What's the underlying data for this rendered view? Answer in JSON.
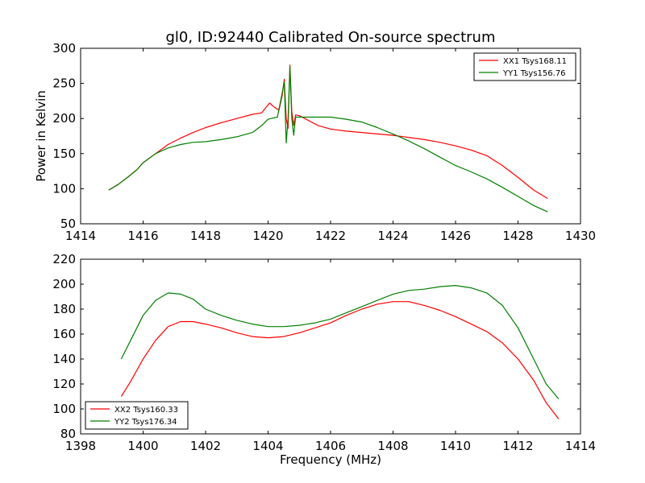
{
  "chart_data": [
    {
      "type": "line",
      "title": "gl0, ID:92440 Calibrated On-source spectrum",
      "xlabel": "",
      "ylabel": "Power in Kelvin",
      "xlim": [
        1414,
        1430
      ],
      "ylim": [
        50,
        300
      ],
      "xticks": [
        1414,
        1416,
        1418,
        1420,
        1422,
        1424,
        1426,
        1428,
        1430
      ],
      "yticks": [
        50,
        100,
        150,
        200,
        250,
        300
      ],
      "legend_position": "top-right",
      "grid": false,
      "series": [
        {
          "name": "XX1 Tsys168.11",
          "color": "#ff0000",
          "points": [
            [
              1414.9,
              98
            ],
            [
              1415.2,
              106
            ],
            [
              1415.5,
              116
            ],
            [
              1415.8,
              127
            ],
            [
              1416.0,
              137
            ],
            [
              1416.4,
              150
            ],
            [
              1416.8,
              163
            ],
            [
              1417.2,
              172
            ],
            [
              1417.6,
              180
            ],
            [
              1418.0,
              187
            ],
            [
              1418.5,
              194
            ],
            [
              1419.0,
              200
            ],
            [
              1419.5,
              206
            ],
            [
              1419.8,
              208
            ],
            [
              1419.9,
              214
            ],
            [
              1420.05,
              222
            ],
            [
              1420.2,
              216
            ],
            [
              1420.35,
              212
            ],
            [
              1420.45,
              232
            ],
            [
              1420.52,
              256
            ],
            [
              1420.58,
              200
            ],
            [
              1420.64,
              186
            ],
            [
              1420.7,
              276
            ],
            [
              1420.76,
              210
            ],
            [
              1420.82,
              190
            ],
            [
              1420.88,
              205
            ],
            [
              1421.0,
              204
            ],
            [
              1421.3,
              197
            ],
            [
              1421.6,
              190
            ],
            [
              1422.0,
              185
            ],
            [
              1422.5,
              182
            ],
            [
              1423.0,
              180
            ],
            [
              1423.5,
              178
            ],
            [
              1424.0,
              176
            ],
            [
              1424.5,
              173
            ],
            [
              1425.0,
              170
            ],
            [
              1425.5,
              166
            ],
            [
              1426.0,
              161
            ],
            [
              1426.5,
              155
            ],
            [
              1427.0,
              147
            ],
            [
              1427.5,
              133
            ],
            [
              1428.0,
              116
            ],
            [
              1428.5,
              98
            ],
            [
              1428.95,
              86
            ]
          ]
        },
        {
          "name": "YY1 Tsys156.76",
          "color": "#008000",
          "points": [
            [
              1414.9,
              98
            ],
            [
              1415.2,
              106
            ],
            [
              1415.5,
              116
            ],
            [
              1415.8,
              127
            ],
            [
              1416.0,
              137
            ],
            [
              1416.4,
              150
            ],
            [
              1416.8,
              158
            ],
            [
              1417.2,
              163
            ],
            [
              1417.6,
              166
            ],
            [
              1418.0,
              167
            ],
            [
              1418.5,
              170
            ],
            [
              1419.0,
              174
            ],
            [
              1419.5,
              180
            ],
            [
              1419.8,
              190
            ],
            [
              1420.0,
              199
            ],
            [
              1420.3,
              202
            ],
            [
              1420.45,
              236
            ],
            [
              1420.52,
              252
            ],
            [
              1420.58,
              165
            ],
            [
              1420.64,
              200
            ],
            [
              1420.7,
              274
            ],
            [
              1420.76,
              200
            ],
            [
              1420.82,
              176
            ],
            [
              1420.88,
              202
            ],
            [
              1421.0,
              202
            ],
            [
              1421.5,
              202
            ],
            [
              1422.0,
              202
            ],
            [
              1422.5,
              199
            ],
            [
              1423.0,
              195
            ],
            [
              1423.5,
              187
            ],
            [
              1424.0,
              178
            ],
            [
              1424.5,
              168
            ],
            [
              1425.0,
              157
            ],
            [
              1425.5,
              145
            ],
            [
              1426.0,
              133
            ],
            [
              1426.5,
              124
            ],
            [
              1427.0,
              114
            ],
            [
              1427.5,
              102
            ],
            [
              1428.0,
              89
            ],
            [
              1428.5,
              76
            ],
            [
              1428.95,
              67
            ]
          ]
        }
      ]
    },
    {
      "type": "line",
      "title": "",
      "xlabel": "Frequency (MHz)",
      "ylabel": "",
      "xlim": [
        1398,
        1414
      ],
      "ylim": [
        80,
        220
      ],
      "xticks": [
        1398,
        1400,
        1402,
        1404,
        1406,
        1408,
        1410,
        1412,
        1414
      ],
      "yticks": [
        80,
        100,
        120,
        140,
        160,
        180,
        200,
        220
      ],
      "legend_position": "bottom-left",
      "grid": false,
      "series": [
        {
          "name": "XX2 Tsys160.33",
          "color": "#ff0000",
          "points": [
            [
              1399.3,
              110
            ],
            [
              1399.6,
              122
            ],
            [
              1400.0,
              140
            ],
            [
              1400.4,
              155
            ],
            [
              1400.8,
              166
            ],
            [
              1401.2,
              170
            ],
            [
              1401.6,
              170
            ],
            [
              1402.0,
              168
            ],
            [
              1402.5,
              165
            ],
            [
              1403.0,
              161
            ],
            [
              1403.5,
              158
            ],
            [
              1404.0,
              157
            ],
            [
              1404.5,
              158
            ],
            [
              1405.0,
              161
            ],
            [
              1405.5,
              165
            ],
            [
              1406.0,
              169
            ],
            [
              1406.5,
              175
            ],
            [
              1407.0,
              180
            ],
            [
              1407.5,
              184
            ],
            [
              1408.0,
              186
            ],
            [
              1408.5,
              186
            ],
            [
              1409.0,
              183
            ],
            [
              1409.5,
              179
            ],
            [
              1410.0,
              174
            ],
            [
              1410.5,
              168
            ],
            [
              1411.0,
              162
            ],
            [
              1411.5,
              153
            ],
            [
              1412.0,
              140
            ],
            [
              1412.5,
              123
            ],
            [
              1412.9,
              105
            ],
            [
              1413.3,
              92
            ]
          ]
        },
        {
          "name": "YY2 Tsys176.34",
          "color": "#008000",
          "points": [
            [
              1399.3,
              140
            ],
            [
              1399.6,
              155
            ],
            [
              1400.0,
              175
            ],
            [
              1400.4,
              187
            ],
            [
              1400.8,
              193
            ],
            [
              1401.2,
              192
            ],
            [
              1401.6,
              188
            ],
            [
              1402.0,
              180
            ],
            [
              1402.5,
              175
            ],
            [
              1403.0,
              171
            ],
            [
              1403.5,
              168
            ],
            [
              1404.0,
              166
            ],
            [
              1404.5,
              166
            ],
            [
              1405.0,
              167
            ],
            [
              1405.5,
              169
            ],
            [
              1406.0,
              172
            ],
            [
              1406.5,
              177
            ],
            [
              1407.0,
              182
            ],
            [
              1407.5,
              187
            ],
            [
              1408.0,
              192
            ],
            [
              1408.5,
              195
            ],
            [
              1409.0,
              196
            ],
            [
              1409.5,
              198
            ],
            [
              1410.0,
              199
            ],
            [
              1410.5,
              197
            ],
            [
              1411.0,
              193
            ],
            [
              1411.5,
              183
            ],
            [
              1412.0,
              165
            ],
            [
              1412.5,
              140
            ],
            [
              1412.9,
              120
            ],
            [
              1413.3,
              108
            ]
          ]
        }
      ]
    }
  ]
}
